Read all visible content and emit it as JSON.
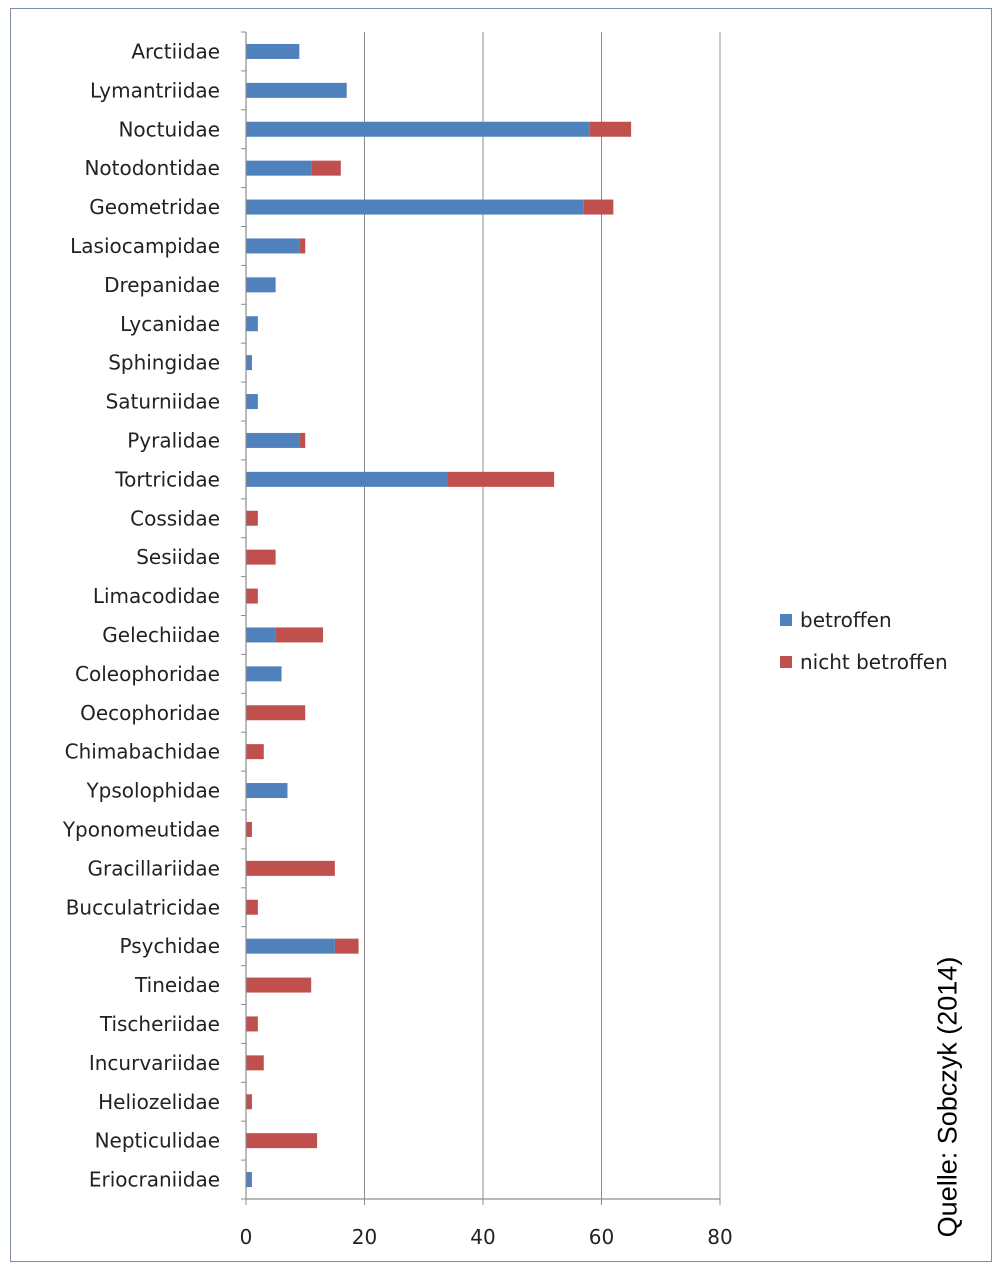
{
  "chart_data": {
    "type": "bar",
    "orientation": "horizontal",
    "stacked": true,
    "categories": [
      "Arctiidae",
      "Lymantriidae",
      "Noctuidae",
      "Notodontidae",
      "Geometridae",
      "Lasiocampidae",
      "Drepanidae",
      "Lycanidae",
      "Sphingidae",
      "Saturniidae",
      "Pyralidae",
      "Tortricidae",
      "Cossidae",
      "Sesiidae",
      "Limacodidae",
      "Gelechiidae",
      "Coleophoridae",
      "Oecophoridae",
      "Chimabachidae",
      "Ypsolophidae",
      "Yponomeutidae",
      "Gracillariidae",
      "Bucculatricidae",
      "Psychidae",
      "Tineidae",
      "Tischeriidae",
      "Incurvariidae",
      "Heliozelidae",
      "Nepticulidae",
      "Eriocraniidae"
    ],
    "series": [
      {
        "name": "betroffen",
        "color": "#4f81bd",
        "values": [
          9,
          17,
          58,
          11,
          57,
          9,
          5,
          2,
          1,
          2,
          9,
          34,
          0,
          0,
          0,
          5,
          6,
          0,
          0,
          7,
          0,
          0,
          0,
          15,
          0,
          0,
          0,
          0,
          0,
          1
        ]
      },
      {
        "name": "nicht betroffen",
        "color": "#c0504d",
        "values": [
          0,
          0,
          7,
          5,
          5,
          1,
          0,
          0,
          0,
          0,
          1,
          18,
          2,
          5,
          2,
          8,
          0,
          10,
          3,
          0,
          1,
          15,
          2,
          4,
          11,
          2,
          3,
          1,
          12,
          0
        ]
      }
    ],
    "xlim": [
      0,
      80
    ],
    "xticks": [
      0,
      20,
      40,
      60,
      80
    ],
    "grid": true,
    "legend_position": "right"
  },
  "source_note": "Quelle: Sobczyk (2014)"
}
